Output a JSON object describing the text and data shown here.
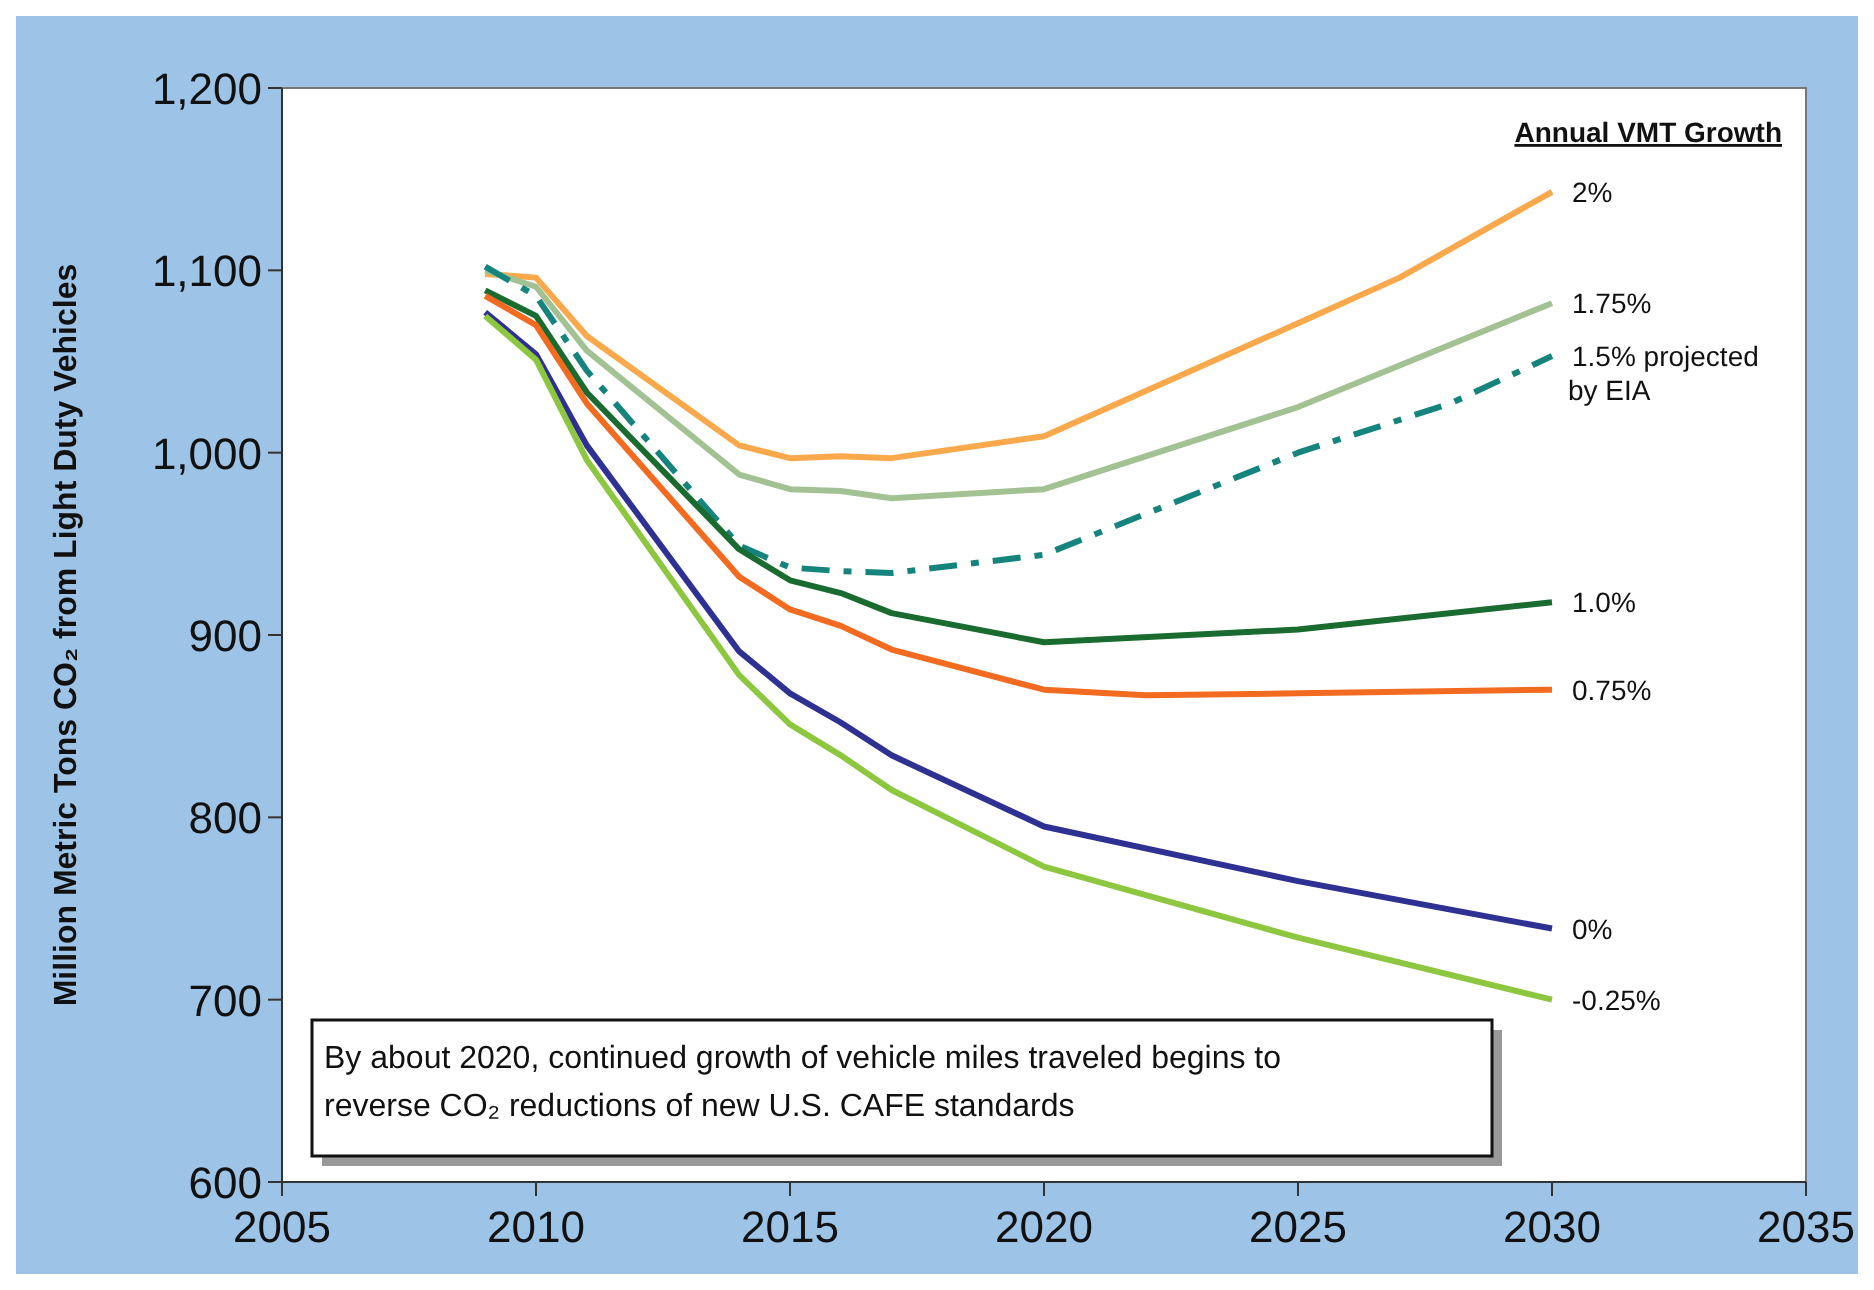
{
  "chart_data": {
    "type": "line",
    "ylabel": "Million Metric Tons CO₂ from Light Duty Vehicles",
    "legend_title": "Annual VMT Growth",
    "xlim": [
      2005,
      2035
    ],
    "xticks": [
      2005,
      2010,
      2015,
      2020,
      2025,
      2030,
      2035
    ],
    "ylim": [
      600,
      1200
    ],
    "yticks": [
      {
        "value": 600,
        "label": "600"
      },
      {
        "value": 700,
        "label": "700"
      },
      {
        "value": 800,
        "label": "800"
      },
      {
        "value": 900,
        "label": "900"
      },
      {
        "value": 1000,
        "label": "1,000"
      },
      {
        "value": 1100,
        "label": "1,100"
      },
      {
        "value": 1200,
        "label": "1,200"
      }
    ],
    "grid": false,
    "marker": "none",
    "annotations": [
      "By about 2020, continued growth of vehicle miles traveled begins to reverse CO₂ reductions of new U.S. CAFE standards"
    ],
    "series": [
      {
        "name": "2%",
        "color": "#f9a94b",
        "line_style": "solid",
        "x": [
          2009,
          2010,
          2011,
          2014,
          2015,
          2016,
          2017,
          2020,
          2025,
          2027,
          2030
        ],
        "values": [
          1098,
          1096,
          1064,
          1004,
          997,
          998,
          997,
          1009,
          1071,
          1096,
          1143
        ]
      },
      {
        "name": "1.75%",
        "color": "#a3c293",
        "line_style": "solid",
        "x": [
          2009,
          2010,
          2011,
          2014,
          2015,
          2016,
          2017,
          2020,
          2025,
          2030
        ],
        "values": [
          1100,
          1091,
          1056,
          988,
          980,
          979,
          975,
          980,
          1025,
          1082
        ]
      },
      {
        "name": "1.5% projected by EIA",
        "color": "#14847c",
        "line_style": "dashed",
        "x": [
          2009,
          2010,
          2011,
          2014,
          2015,
          2016,
          2017,
          2020,
          2025,
          2028,
          2030
        ],
        "values": [
          1102,
          1086,
          1045,
          949,
          937,
          935,
          934,
          944,
          1000,
          1027,
          1053
        ]
      },
      {
        "name": "1.0%",
        "color": "#1a6b30",
        "line_style": "solid",
        "x": [
          2009,
          2010,
          2011,
          2014,
          2015,
          2016,
          2017,
          2020,
          2025,
          2030
        ],
        "values": [
          1089,
          1075,
          1033,
          947,
          930,
          923,
          912,
          896,
          903,
          918
        ]
      },
      {
        "name": "0.75%",
        "color": "#f26b21",
        "line_style": "solid",
        "x": [
          2009,
          2010,
          2011,
          2014,
          2015,
          2016,
          2017,
          2020,
          2022,
          2025,
          2030
        ],
        "values": [
          1086,
          1070,
          1027,
          932,
          914,
          905,
          892,
          870,
          867,
          868,
          870
        ]
      },
      {
        "name": "0%",
        "color": "#2e3192",
        "line_style": "solid",
        "x": [
          2009,
          2010,
          2011,
          2014,
          2015,
          2016,
          2017,
          2020,
          2025,
          2030
        ],
        "values": [
          1077,
          1054,
          1004,
          891,
          868,
          852,
          834,
          795,
          765,
          739
        ]
      },
      {
        "name": "-0.25%",
        "color": "#8dc63f",
        "line_style": "solid",
        "x": [
          2009,
          2010,
          2011,
          2014,
          2015,
          2016,
          2017,
          2020,
          2025,
          2030
        ],
        "values": [
          1075,
          1051,
          996,
          878,
          851,
          834,
          815,
          773,
          734,
          700
        ]
      }
    ]
  }
}
